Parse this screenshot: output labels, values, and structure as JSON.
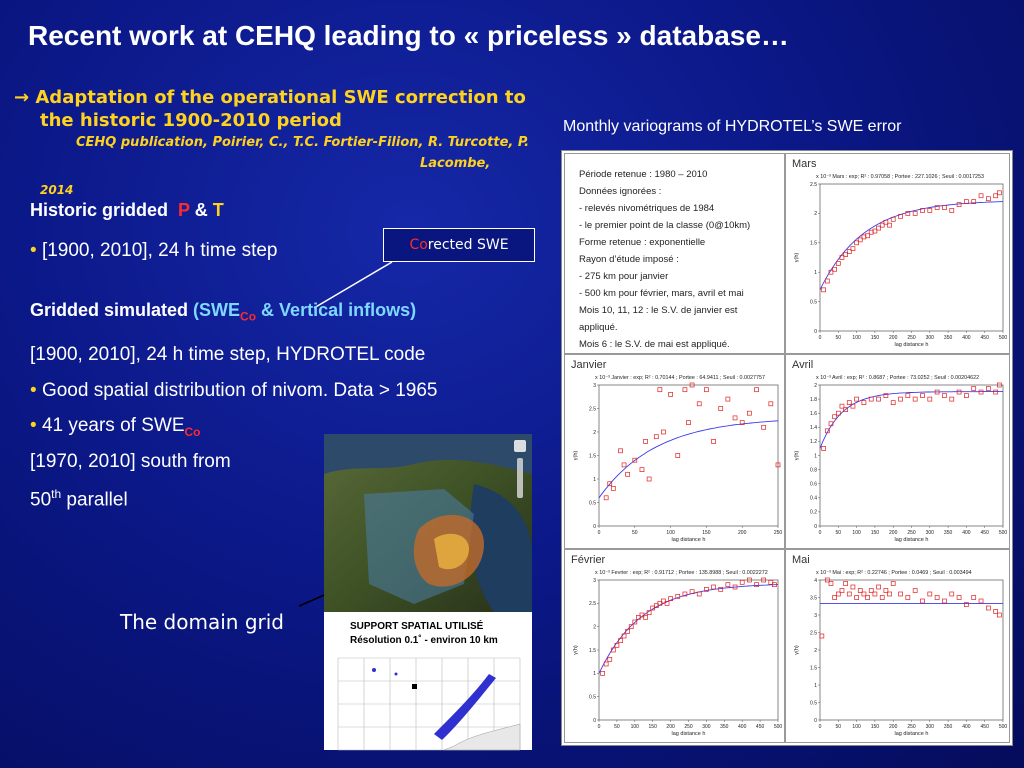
{
  "title": "Recent work at CEHQ leading to « priceless »  database…",
  "adaptation": {
    "arrow": "→",
    "line1": "Adaptation of the operational SWE correction to",
    "line2": "the historic 1900-2010 period",
    "pub1": "CEHQ publication, Poirier, C., T.C. Fortier-Filion, R. Turcotte, P.",
    "pub2": "Lacombe,",
    "pub3": "2014"
  },
  "historic": {
    "label": "Historic gridded",
    "p": "P",
    "amp": "&",
    "t": "T",
    "bullet": "•",
    "range": "[1900,  2010],    24 h time step"
  },
  "callout": {
    "co": "Co",
    "rest": "rected SWE"
  },
  "simulated": {
    "label": "Gridded simulated",
    "open": "(SWE",
    "sub": "Co",
    "rest": "  & Vertical inflows)",
    "line1": "[1900,  2010],    24 h time step, HYDROTEL code",
    "bullet1": "Good spatial distribution of nivom. Data > 1965",
    "bullet2": "41 years of SWE",
    "bullet2_sub": "Co",
    "line2": "[1970, 2010]  south from",
    "line3_pre": " 50",
    "line3_sup": "th",
    "line3_post": " parallel"
  },
  "caption": "The domain grid",
  "variogram_title": "Monthly variograms of HYDROTEL’s SWE error",
  "info_lines": [
    "Période retenue : 1980 – 2010",
    "Données ignorées :",
    "- relevés nivométriques de 1984",
    "- le premier point de la classe (0@10km)",
    "Forme retenue : exponentielle",
    "Rayon d’étude imposé :",
    "- 275 km pour janvier",
    "- 500 km pour février, mars, avril et mai",
    "Mois 10, 11, 12 : le S.V. de janvier est",
    "appliqué.",
    "Mois 6 : le S.V. de mai est appliqué."
  ],
  "months": {
    "mars": "Mars",
    "janvier": "Janvier",
    "avril": "Avril",
    "fevrier": "Février",
    "mai": "Mai"
  },
  "plot_headers": {
    "mars": "x 10⁻³ Mars : exp;  R² : 0.97058 ; Portee : 227.1026 ; Seuil : 0.0017253",
    "janvier": "x 10⁻³ Janvier : exp;  R² : 0.70144 ; Portee : 64.9411 ; Seuil : 0.0027757",
    "avril": "x 10⁻³ Avril : exp;  R² : 0.8687 ; Portee : 73.0252 ; Seuil : 0.00204622",
    "fevrier": "x 10⁻³ Fevrier : exp;  R² : 0.91712 ; Portee : 135.8988 ; Seuil : 0.0022272",
    "mai": "x 10⁻³ Mai : exp;  R² : 0.22746 ; Portee : 0.0469 ; Seuil : 0.003494"
  },
  "axis_label": "lag distance h",
  "y_label": "γ(h)",
  "support": {
    "line1": "SUPPORT SPATIAL UTILISÉ",
    "line2": "Résolution 0.1˚ - environ 10 km"
  },
  "chart_data": [
    {
      "type": "scatter",
      "name": "Mars",
      "xlim": [
        0,
        500
      ],
      "ylim": [
        0,
        2.5
      ],
      "curve": "exponential",
      "x": [
        10,
        20,
        30,
        40,
        50,
        60,
        70,
        80,
        90,
        100,
        110,
        120,
        130,
        140,
        150,
        160,
        170,
        180,
        190,
        200,
        220,
        240,
        260,
        280,
        300,
        320,
        340,
        360,
        380,
        400,
        420,
        440,
        460,
        480,
        490
      ],
      "y": [
        0.7,
        0.85,
        1.0,
        1.05,
        1.15,
        1.25,
        1.3,
        1.35,
        1.4,
        1.5,
        1.55,
        1.6,
        1.62,
        1.68,
        1.7,
        1.75,
        1.8,
        1.85,
        1.8,
        1.9,
        1.95,
        2.0,
        2.0,
        2.05,
        2.05,
        2.1,
        2.1,
        2.05,
        2.15,
        2.2,
        2.2,
        2.3,
        2.25,
        2.3,
        2.35
      ]
    },
    {
      "type": "scatter",
      "name": "Janvier",
      "xlim": [
        0,
        250
      ],
      "ylim": [
        0,
        3
      ],
      "curve": "exponential",
      "x": [
        10,
        15,
        20,
        30,
        35,
        40,
        50,
        60,
        65,
        70,
        80,
        85,
        90,
        100,
        110,
        120,
        125,
        130,
        140,
        150,
        160,
        170,
        180,
        190,
        200,
        210,
        220,
        230,
        240,
        250
      ],
      "y": [
        0.6,
        0.9,
        0.8,
        1.6,
        1.3,
        1.1,
        1.4,
        1.2,
        1.8,
        1.0,
        1.9,
        2.9,
        2.0,
        2.8,
        1.5,
        2.9,
        2.2,
        3.0,
        2.6,
        2.9,
        1.8,
        2.5,
        2.7,
        2.3,
        2.2,
        2.4,
        2.9,
        2.1,
        2.6,
        1.3
      ]
    },
    {
      "type": "scatter",
      "name": "Avril",
      "xlim": [
        0,
        500
      ],
      "ylim": [
        0,
        2
      ],
      "curve": "exponential",
      "x": [
        10,
        20,
        30,
        40,
        50,
        60,
        70,
        80,
        90,
        100,
        120,
        140,
        160,
        180,
        200,
        220,
        240,
        260,
        280,
        300,
        320,
        340,
        360,
        380,
        400,
        420,
        440,
        460,
        480,
        490
      ],
      "y": [
        1.1,
        1.35,
        1.45,
        1.55,
        1.6,
        1.7,
        1.65,
        1.75,
        1.7,
        1.8,
        1.75,
        1.8,
        1.8,
        1.85,
        1.75,
        1.8,
        1.85,
        1.8,
        1.85,
        1.8,
        1.9,
        1.85,
        1.8,
        1.9,
        1.85,
        1.95,
        1.9,
        1.95,
        1.9,
        2.0
      ]
    },
    {
      "type": "scatter",
      "name": "Février",
      "xlim": [
        0,
        500
      ],
      "ylim": [
        0,
        3
      ],
      "curve": "exponential",
      "x": [
        10,
        20,
        30,
        40,
        50,
        60,
        70,
        80,
        90,
        100,
        110,
        120,
        130,
        140,
        150,
        160,
        170,
        180,
        190,
        200,
        220,
        240,
        260,
        280,
        300,
        320,
        340,
        360,
        380,
        400,
        420,
        440,
        460,
        480,
        490
      ],
      "y": [
        1.0,
        1.2,
        1.3,
        1.5,
        1.6,
        1.7,
        1.8,
        1.9,
        2.0,
        2.1,
        2.2,
        2.25,
        2.2,
        2.3,
        2.4,
        2.45,
        2.5,
        2.55,
        2.5,
        2.6,
        2.65,
        2.7,
        2.75,
        2.7,
        2.8,
        2.85,
        2.8,
        2.9,
        2.85,
        2.95,
        3.0,
        2.9,
        3.0,
        2.95,
        2.9
      ]
    },
    {
      "type": "scatter",
      "name": "Mai",
      "xlim": [
        0,
        500
      ],
      "ylim": [
        0,
        4
      ],
      "curve": "exponential",
      "x": [
        5,
        20,
        30,
        40,
        50,
        60,
        70,
        80,
        90,
        100,
        110,
        120,
        130,
        140,
        150,
        160,
        170,
        180,
        190,
        200,
        220,
        240,
        260,
        280,
        300,
        320,
        340,
        360,
        380,
        400,
        420,
        440,
        460,
        480,
        490
      ],
      "y": [
        2.4,
        4.0,
        3.9,
        3.5,
        3.6,
        3.7,
        3.9,
        3.6,
        3.8,
        3.5,
        3.7,
        3.6,
        3.5,
        3.7,
        3.6,
        3.8,
        3.5,
        3.7,
        3.6,
        3.9,
        3.6,
        3.5,
        3.7,
        3.4,
        3.6,
        3.5,
        3.4,
        3.6,
        3.5,
        3.3,
        3.5,
        3.4,
        3.2,
        3.1,
        3.0
      ]
    }
  ]
}
